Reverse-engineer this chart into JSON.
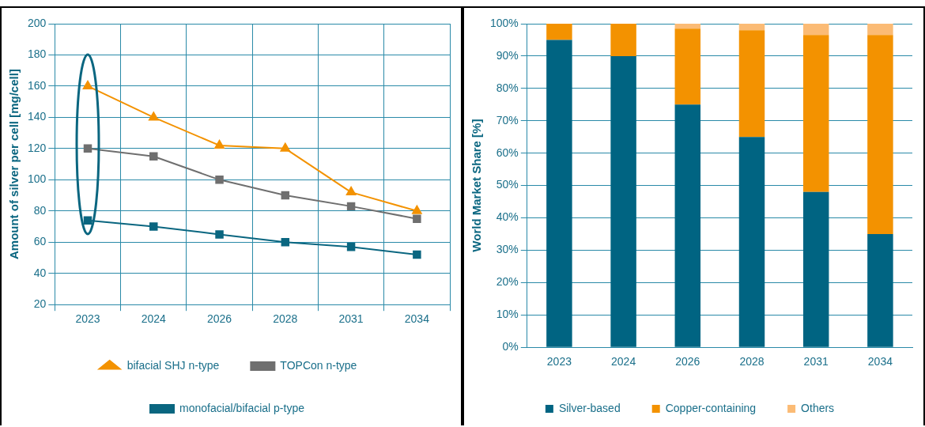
{
  "chart_data": [
    {
      "type": "line",
      "ylabel": "Amount of silver per cell [mg/cell]",
      "categories": [
        "2023",
        "2024",
        "2026",
        "2028",
        "2031",
        "2034"
      ],
      "ylim": [
        20,
        200
      ],
      "yticks": [
        20,
        40,
        60,
        80,
        100,
        120,
        140,
        160,
        180,
        200
      ],
      "grid": true,
      "legend": "bottom",
      "line_style": "solid",
      "series": [
        {
          "name": "bifacial SHJ n-type",
          "color": "#f39200",
          "marker": "triangle",
          "values": [
            160,
            140,
            122,
            120,
            92,
            80
          ]
        },
        {
          "name": "TOPCon n-type",
          "color": "#6f6f6f",
          "marker": "square",
          "values": [
            120,
            115,
            100,
            90,
            83,
            75
          ]
        },
        {
          "name": "monofacial/bifacial p-type",
          "color": "#0a6680",
          "marker": "square",
          "values": [
            74,
            70,
            65,
            60,
            57,
            52
          ]
        }
      ]
    },
    {
      "type": "bar",
      "stacked": true,
      "ylabel": "World Market Share [%]",
      "categories": [
        "2023",
        "2024",
        "2026",
        "2028",
        "2031",
        "2034"
      ],
      "ylim": [
        0,
        100
      ],
      "yticks": [
        {
          "value": 0,
          "label": "0%"
        },
        {
          "value": 10,
          "label": "10%"
        },
        {
          "value": 20,
          "label": "20%"
        },
        {
          "value": 30,
          "label": "30%"
        },
        {
          "value": 40,
          "label": "40%"
        },
        {
          "value": 50,
          "label": "50%"
        },
        {
          "value": 60,
          "label": "60%"
        },
        {
          "value": 70,
          "label": "70%"
        },
        {
          "value": 80,
          "label": "80%"
        },
        {
          "value": 90,
          "label": "90%"
        },
        {
          "value": 100,
          "label": "100%"
        }
      ],
      "grid": "y",
      "legend": "bottom",
      "series": [
        {
          "name": "Silver-based",
          "color": "#006482",
          "values": [
            95,
            90,
            75,
            65,
            48,
            35
          ]
        },
        {
          "name": "Copper-containing",
          "color": "#f39200",
          "values": [
            5,
            10,
            23.5,
            33,
            48.5,
            61.5
          ]
        },
        {
          "name": "Others",
          "color": "#fbbb75",
          "values": [
            0,
            0,
            1.5,
            2,
            3.5,
            3.5
          ]
        }
      ]
    }
  ]
}
